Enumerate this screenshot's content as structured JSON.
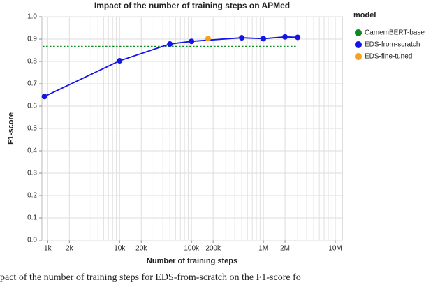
{
  "chart_data": {
    "type": "line",
    "title": "Impact of the number of training steps on APMed",
    "x_label": "Number of training steps",
    "y_label": "F1-score",
    "legend_title": "model",
    "caption": "pact of the number of training steps for EDS-from-scratch on the F1-score fo",
    "x_log": true,
    "grid": true,
    "xlim": [
      830,
      12500000
    ],
    "xticks": [
      {
        "value": 1000,
        "label": "1k"
      },
      {
        "value": 2000,
        "label": "2k"
      },
      {
        "value": 10000,
        "label": "10k"
      },
      {
        "value": 20000,
        "label": "20k"
      },
      {
        "value": 100000,
        "label": "100k"
      },
      {
        "value": 200000,
        "label": "200k"
      },
      {
        "value": 1000000,
        "label": "1M"
      },
      {
        "value": 2000000,
        "label": "2M"
      },
      {
        "value": 10000000,
        "label": "10M"
      }
    ],
    "x_minor_ticks": [
      3000,
      4000,
      5000,
      6000,
      7000,
      8000,
      9000,
      30000,
      40000,
      50000,
      60000,
      70000,
      80000,
      90000,
      300000,
      400000,
      500000,
      600000,
      700000,
      800000,
      900000,
      3000000,
      4000000,
      5000000,
      6000000,
      7000000,
      8000000,
      9000000
    ],
    "ylim": [
      0,
      1
    ],
    "yticks": [
      {
        "value": 0,
        "label": "0.0"
      },
      0.1,
      0.2,
      0.3,
      0.4,
      0.5,
      0.6,
      0.7,
      0.8,
      0.9,
      {
        "value": 1,
        "label": "1.0"
      }
    ],
    "series": [
      {
        "name": "CamemBERT-base",
        "color": "#0b8a1e",
        "dash": "dotted",
        "points": false,
        "x": [
          850,
          3000000
        ],
        "values": [
          0.866,
          0.866
        ]
      },
      {
        "name": "EDS-from-scratch",
        "color": "#1414e6",
        "dash": "solid",
        "points": true,
        "x": [
          900,
          10000,
          50000,
          100000,
          500000,
          1000000,
          2000000,
          3000000
        ],
        "values": [
          0.643,
          0.803,
          0.878,
          0.89,
          0.906,
          0.902,
          0.91,
          0.908
        ]
      },
      {
        "name": "EDS-fine-tuned",
        "color": "#f5a01e",
        "dash": "none",
        "points": true,
        "x": [
          170000
        ],
        "values": [
          0.902
        ]
      }
    ]
  }
}
